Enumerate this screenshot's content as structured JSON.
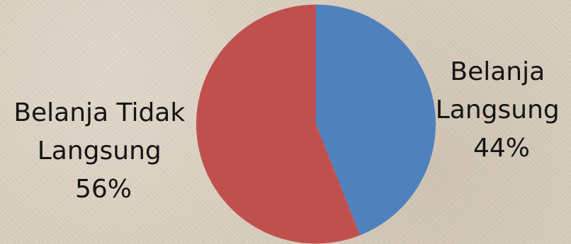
{
  "chart_data": {
    "type": "pie",
    "slices": [
      {
        "label": "Belanja Langsung",
        "label_lines": [
          "Belanja",
          "Langsung"
        ],
        "value": 44,
        "value_text": "44%",
        "color": "#4f81bd"
      },
      {
        "label": "Belanja Tidak Langsung",
        "label_lines": [
          "Belanja Tidak",
          "Langsung"
        ],
        "value": 56,
        "value_text": "56%",
        "color": "#c0504d"
      }
    ],
    "start_angle": "12 o'clock",
    "direction": "clockwise",
    "legend": "none"
  }
}
